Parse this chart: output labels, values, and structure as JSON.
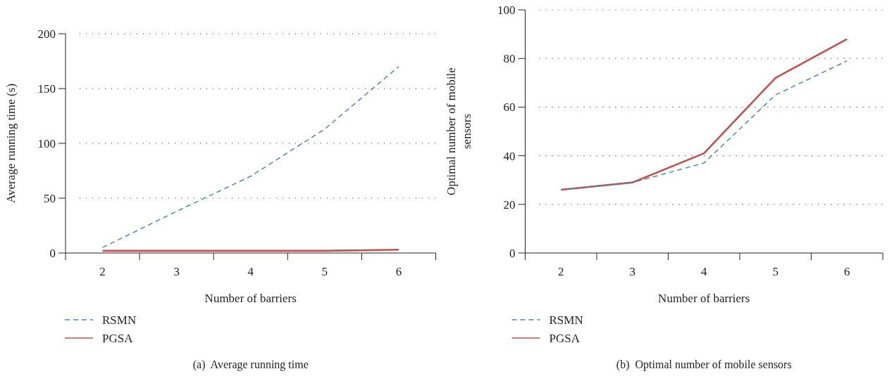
{
  "chart_data": [
    {
      "type": "line",
      "title": "(a)  Average running time",
      "xlabel": "Number of barriers",
      "ylabel": "Average running time (s)",
      "categories": [
        "2",
        "3",
        "4",
        "5",
        "6"
      ],
      "ylim": [
        0,
        200
      ],
      "yticks": [
        0,
        50,
        100,
        150,
        200
      ],
      "grid": "y",
      "legend": "bottom left",
      "marker": "none",
      "series": [
        {
          "name": "RSMN",
          "color": "#4f81bd",
          "line_style": "dashed",
          "values": [
            5,
            38,
            70,
            113,
            170
          ]
        },
        {
          "name": "PGSA",
          "color": "#c0504d",
          "line_style": "solid",
          "values": [
            2,
            2,
            2,
            2,
            3
          ]
        }
      ]
    },
    {
      "type": "line",
      "title": "(b)  Optimal number of mobile sensors",
      "xlabel": "Number of barriers",
      "ylabel": "Optimal number of mobile sensors",
      "categories": [
        "2",
        "3",
        "4",
        "5",
        "6"
      ],
      "ylim": [
        0,
        100
      ],
      "yticks": [
        0,
        20,
        40,
        60,
        80,
        100
      ],
      "grid": "y",
      "legend": "bottom left",
      "marker": "none",
      "series": [
        {
          "name": "RSMN",
          "color": "#4f81bd",
          "line_style": "dashed",
          "values": [
            26,
            29,
            37,
            65,
            79
          ]
        },
        {
          "name": "PGSA",
          "color": "#c0504d",
          "line_style": "solid",
          "values": [
            26,
            29,
            41,
            72,
            88
          ]
        }
      ]
    }
  ]
}
